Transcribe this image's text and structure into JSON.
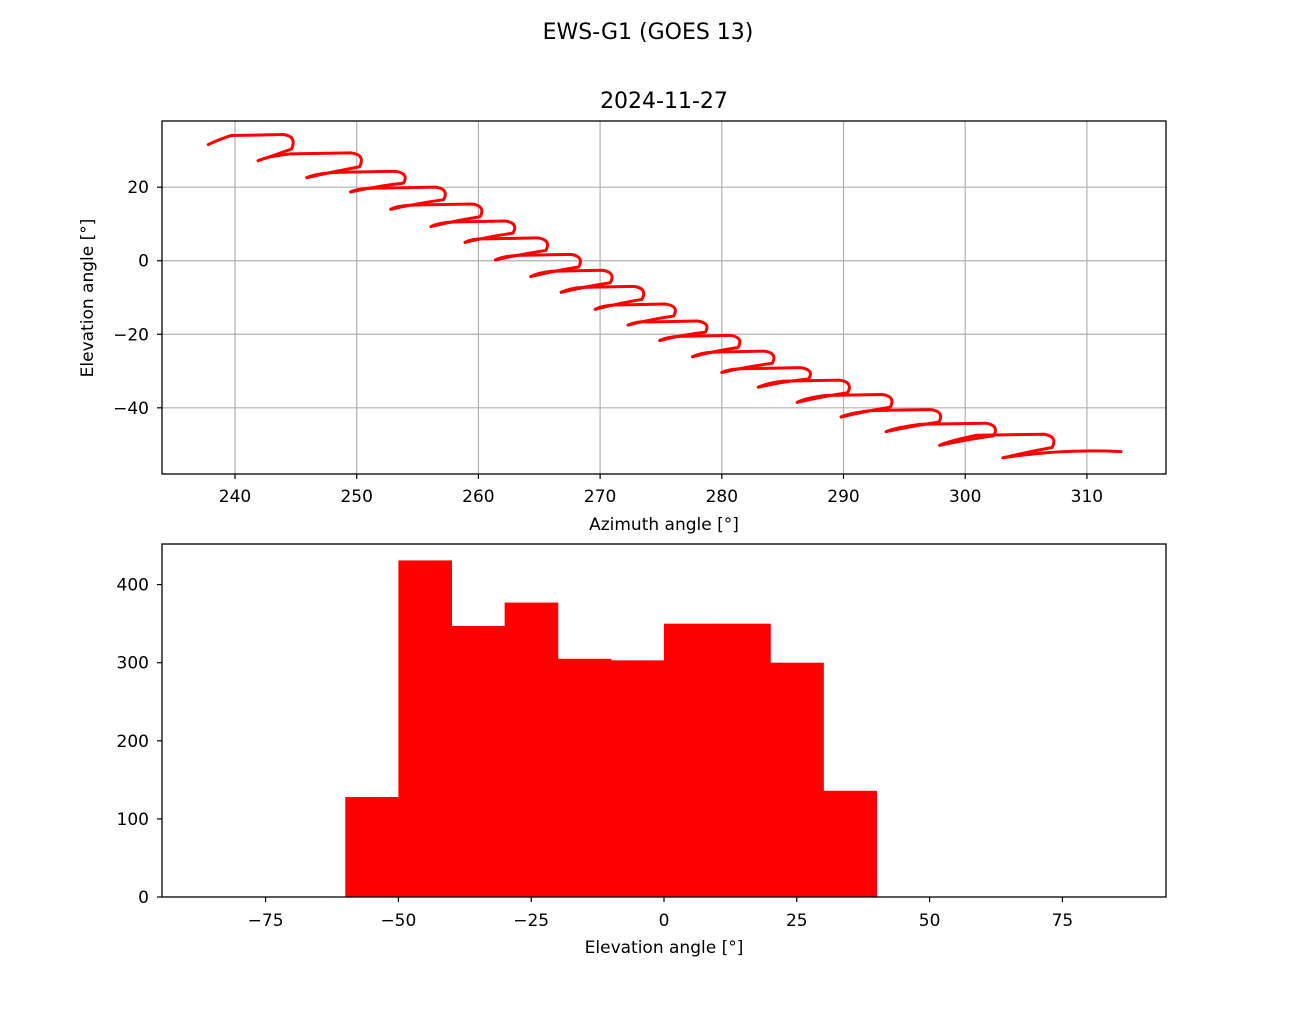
{
  "figure": {
    "suptitle": "EWS-G1 (GOES 13)"
  },
  "colors": {
    "series": "#ff0000",
    "grid": "#b0b0b0",
    "axis": "#000000"
  },
  "chart_data": [
    {
      "type": "line",
      "title": "2024-11-27",
      "xlabel": "Azimuth angle [°]",
      "ylabel": "Elevation angle [°]",
      "xlim": [
        234,
        316.5
      ],
      "ylim": [
        -58,
        38
      ],
      "grid": true,
      "xticks": [
        240,
        250,
        260,
        270,
        280,
        290,
        300,
        310
      ],
      "yticks": [
        -40,
        -20,
        0,
        20
      ],
      "series": [
        {
          "color": "#ff0000",
          "segments": [
            {
              "left": [
                237.8,
                31.6
              ],
              "right": [
                244.8,
                33.5
              ],
              "end": [
                241.9,
                27.2
              ]
            },
            {
              "left": [
                241.9,
                27.2
              ],
              "right": [
                250.4,
                28.5
              ],
              "end": [
                245.9,
                22.6
              ]
            },
            {
              "left": [
                245.9,
                22.6
              ],
              "right": [
                254.0,
                23.5
              ],
              "end": [
                249.5,
                18.7
              ]
            },
            {
              "left": [
                249.5,
                18.7
              ],
              "right": [
                257.3,
                19.2
              ],
              "end": [
                252.8,
                14.0
              ]
            },
            {
              "left": [
                252.8,
                14.0
              ],
              "right": [
                260.3,
                14.6
              ],
              "end": [
                256.1,
                9.3
              ]
            },
            {
              "left": [
                256.1,
                9.3
              ],
              "right": [
                263.0,
                10.0
              ],
              "end": [
                258.9,
                5.0
              ]
            },
            {
              "left": [
                258.9,
                5.0
              ],
              "right": [
                265.7,
                5.4
              ],
              "end": [
                261.4,
                0.2
              ]
            },
            {
              "left": [
                261.4,
                0.2
              ],
              "right": [
                268.4,
                0.9
              ],
              "end": [
                264.3,
                -4.3
              ]
            },
            {
              "left": [
                264.3,
                -4.3
              ],
              "right": [
                271.0,
                -3.4
              ],
              "end": [
                266.8,
                -8.6
              ]
            },
            {
              "left": [
                266.8,
                -8.6
              ],
              "right": [
                273.6,
                -7.8
              ],
              "end": [
                269.6,
                -13.2
              ]
            },
            {
              "left": [
                269.6,
                -13.2
              ],
              "right": [
                276.2,
                -12.6
              ],
              "end": [
                272.3,
                -17.5
              ]
            },
            {
              "left": [
                272.3,
                -17.5
              ],
              "right": [
                278.8,
                -17.2
              ],
              "end": [
                274.9,
                -21.7
              ]
            },
            {
              "left": [
                274.9,
                -21.7
              ],
              "right": [
                281.5,
                -21.1
              ],
              "end": [
                277.6,
                -26.1
              ]
            },
            {
              "left": [
                277.6,
                -26.1
              ],
              "right": [
                284.3,
                -25.4
              ],
              "end": [
                280.0,
                -30.4
              ]
            },
            {
              "left": [
                280.0,
                -30.4
              ],
              "right": [
                287.3,
                -29.9
              ],
              "end": [
                283.0,
                -34.4
              ]
            },
            {
              "left": [
                283.0,
                -34.4
              ],
              "right": [
                290.5,
                -33.3
              ],
              "end": [
                286.2,
                -38.5
              ]
            },
            {
              "left": [
                286.2,
                -38.5
              ],
              "right": [
                294.0,
                -37.2
              ],
              "end": [
                289.8,
                -42.5
              ]
            },
            {
              "left": [
                289.8,
                -42.5
              ],
              "right": [
                298.0,
                -41.3
              ],
              "end": [
                293.5,
                -46.5
              ]
            },
            {
              "left": [
                293.5,
                -46.5
              ],
              "right": [
                302.5,
                -45.0
              ],
              "end": [
                297.9,
                -50.2
              ]
            },
            {
              "left": [
                297.9,
                -50.2
              ],
              "right": [
                307.3,
                -48.0
              ],
              "end": [
                303.1,
                -53.6
              ]
            },
            {
              "left": [
                303.1,
                -53.6
              ],
              "right": [
                312.8,
                -51.9
              ],
              "end": [
                312.8,
                -51.9
              ]
            }
          ]
        }
      ]
    },
    {
      "type": "bar",
      "title": "",
      "xlabel": "Elevation angle [°]",
      "ylabel": "",
      "xlim": [
        -94.5,
        94.5
      ],
      "ylim": [
        0,
        452
      ],
      "grid": false,
      "xticks": [
        -75,
        -50,
        -25,
        0,
        25,
        50,
        75
      ],
      "xtick_labels": [
        "−75",
        "−50",
        "−25",
        "0",
        "25",
        "50",
        "75"
      ],
      "yticks": [
        0,
        100,
        200,
        300,
        400
      ],
      "bin_edges": [
        -60,
        -50,
        -40,
        -30,
        -20,
        -10,
        0,
        10,
        20,
        30,
        40
      ],
      "values": [
        128,
        431,
        347,
        377,
        305,
        303,
        350,
        350,
        300,
        136
      ],
      "color": "#ff0000"
    }
  ]
}
